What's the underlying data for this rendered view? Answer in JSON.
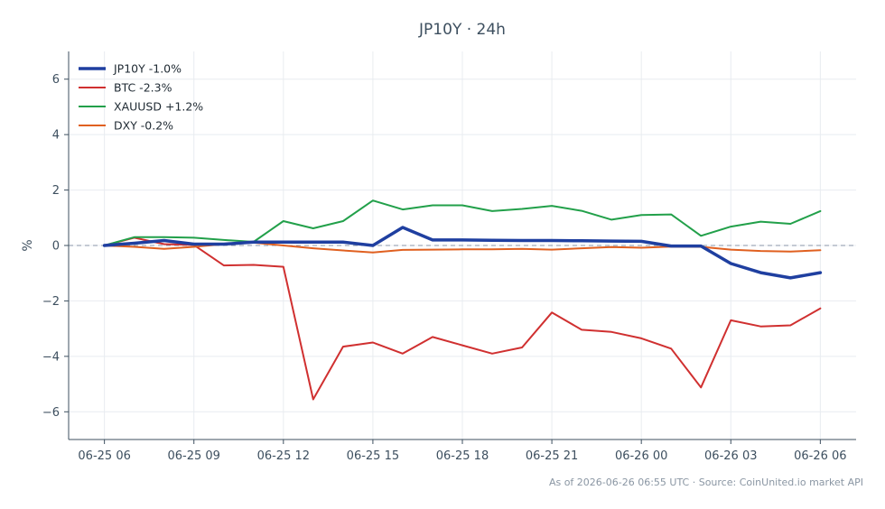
{
  "chart_data": {
    "type": "line",
    "title": "JP10Y · 24h",
    "ylabel": "%",
    "xlabel": "",
    "ylim": [
      -7,
      7
    ],
    "yticks": [
      -6,
      -4,
      -2,
      0,
      2,
      4,
      6
    ],
    "ytick_labels": [
      "−6",
      "−4",
      "−2",
      "0",
      "2",
      "4",
      "6"
    ],
    "x_hours": [
      0,
      1,
      2,
      3,
      4,
      5,
      6,
      7,
      8,
      9,
      10,
      11,
      12,
      13,
      14,
      15,
      16,
      17,
      18,
      19,
      20,
      21,
      22,
      23,
      24
    ],
    "xlim_hours": [
      -1.2,
      25.2
    ],
    "xtick_hours": [
      0,
      3,
      6,
      9,
      12,
      15,
      18,
      21,
      24
    ],
    "xtick_labels": [
      "06-25 06",
      "06-25 09",
      "06-25 12",
      "06-25 15",
      "06-25 18",
      "06-25 21",
      "06-26 00",
      "06-26 03",
      "06-26 06"
    ],
    "grid": true,
    "zero_line": true,
    "legend_position": "top-left",
    "series": [
      {
        "name": "JP10Y -1.0%",
        "color": "#1f3fa0",
        "width": 3.5,
        "values": [
          0,
          0.08,
          0.18,
          0.05,
          0.05,
          0.12,
          0.12,
          0.12,
          0.12,
          0.0,
          0.65,
          0.2,
          0.2,
          0.19,
          0.18,
          0.18,
          0.17,
          0.16,
          0.15,
          -0.02,
          -0.02,
          -0.65,
          -0.98,
          -1.17,
          -0.98
        ]
      },
      {
        "name": "BTC -2.3%",
        "color": "#d03030",
        "width": 2,
        "values": [
          0,
          0.28,
          0.05,
          0.02,
          -0.72,
          -0.7,
          -0.77,
          -5.55,
          -3.65,
          -3.5,
          -3.9,
          -3.3,
          -3.6,
          -3.9,
          -3.68,
          -2.42,
          -3.04,
          -3.12,
          -3.35,
          -3.72,
          -5.12,
          -2.7,
          -2.92,
          -2.88,
          -2.27
        ]
      },
      {
        "name": "XAUUSD +1.2%",
        "color": "#22a04a",
        "width": 2,
        "values": [
          0,
          0.3,
          0.3,
          0.28,
          0.2,
          0.13,
          0.88,
          0.62,
          0.88,
          1.62,
          1.3,
          1.45,
          1.45,
          1.24,
          1.32,
          1.43,
          1.25,
          0.93,
          1.1,
          1.12,
          0.35,
          0.68,
          0.86,
          0.78,
          1.24
        ]
      },
      {
        "name": "DXY -0.2%",
        "color": "#e06020",
        "width": 2,
        "values": [
          0,
          -0.05,
          -0.12,
          -0.05,
          0.05,
          0.1,
          0.0,
          -0.1,
          -0.18,
          -0.25,
          -0.16,
          -0.15,
          -0.14,
          -0.14,
          -0.12,
          -0.15,
          -0.1,
          -0.06,
          -0.08,
          -0.04,
          -0.05,
          -0.15,
          -0.2,
          -0.22,
          -0.17
        ]
      }
    ]
  },
  "footer": {
    "text": "As of 2026-06-26 06:55 UTC · Source: CoinUnited.io market API"
  }
}
